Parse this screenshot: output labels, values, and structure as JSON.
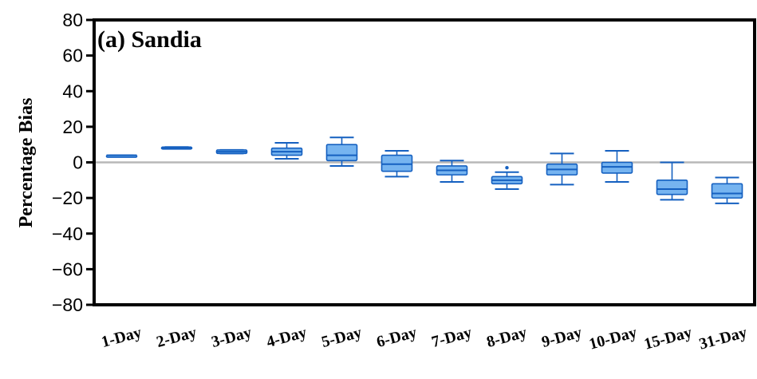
{
  "chart_data": {
    "type": "box",
    "title": "(a) Sandia",
    "ylabel": "Percentage Bias",
    "xlabel": "",
    "ylim": [
      -80,
      80
    ],
    "yticks": [
      80,
      60,
      40,
      20,
      0,
      -20,
      -40,
      -60,
      -80
    ],
    "ytick_labels": [
      "80",
      "60",
      "40",
      "20",
      "0",
      "−20",
      "−40",
      "−60",
      "−80"
    ],
    "reference_line": 0,
    "grid": false,
    "legend": "none",
    "colors": {
      "box_fill": "#76b4f0",
      "box_stroke": "#1560c0",
      "reference_line": "#b8b8b8",
      "frame": "#000000"
    },
    "categories": [
      "1-Day",
      "2-Day",
      "3-Day",
      "4-Day",
      "5-Day",
      "6-Day",
      "7-Day",
      "8-Day",
      "9-Day",
      "10-Day",
      "15-Day",
      "31-Day"
    ],
    "boxes": [
      {
        "min": 4,
        "q1": 4,
        "median": 4,
        "q3": 4,
        "max": 4,
        "outliers": []
      },
      {
        "min": 8,
        "q1": 8,
        "median": 8.3,
        "q3": 8.6,
        "max": 8.6,
        "outliers": []
      },
      {
        "min": 5,
        "q1": 5,
        "median": 6,
        "q3": 7,
        "max": 7,
        "outliers": []
      },
      {
        "min": 2,
        "q1": 4,
        "median": 6,
        "q3": 8,
        "max": 11,
        "outliers": []
      },
      {
        "min": -2,
        "q1": 1,
        "median": 4,
        "q3": 10,
        "max": 14,
        "outliers": []
      },
      {
        "min": -8,
        "q1": -5,
        "median": -1,
        "q3": 4,
        "max": 6.5,
        "outliers": []
      },
      {
        "min": -11,
        "q1": -7,
        "median": -4.5,
        "q3": -2,
        "max": 1,
        "outliers": []
      },
      {
        "min": -15,
        "q1": -12,
        "median": -10,
        "q3": -8,
        "max": -5.5,
        "outliers": [
          -3
        ]
      },
      {
        "min": -12.5,
        "q1": -7,
        "median": -4,
        "q3": -1,
        "max": 5,
        "outliers": []
      },
      {
        "min": -11,
        "q1": -6,
        "median": -2.5,
        "q3": 0,
        "max": 6.5,
        "outliers": []
      },
      {
        "min": -21,
        "q1": -18,
        "median": -15,
        "q3": -10,
        "max": 0,
        "outliers": []
      },
      {
        "min": -23,
        "q1": -20,
        "median": -17.5,
        "q3": -12,
        "max": -8.5,
        "outliers": []
      }
    ]
  }
}
